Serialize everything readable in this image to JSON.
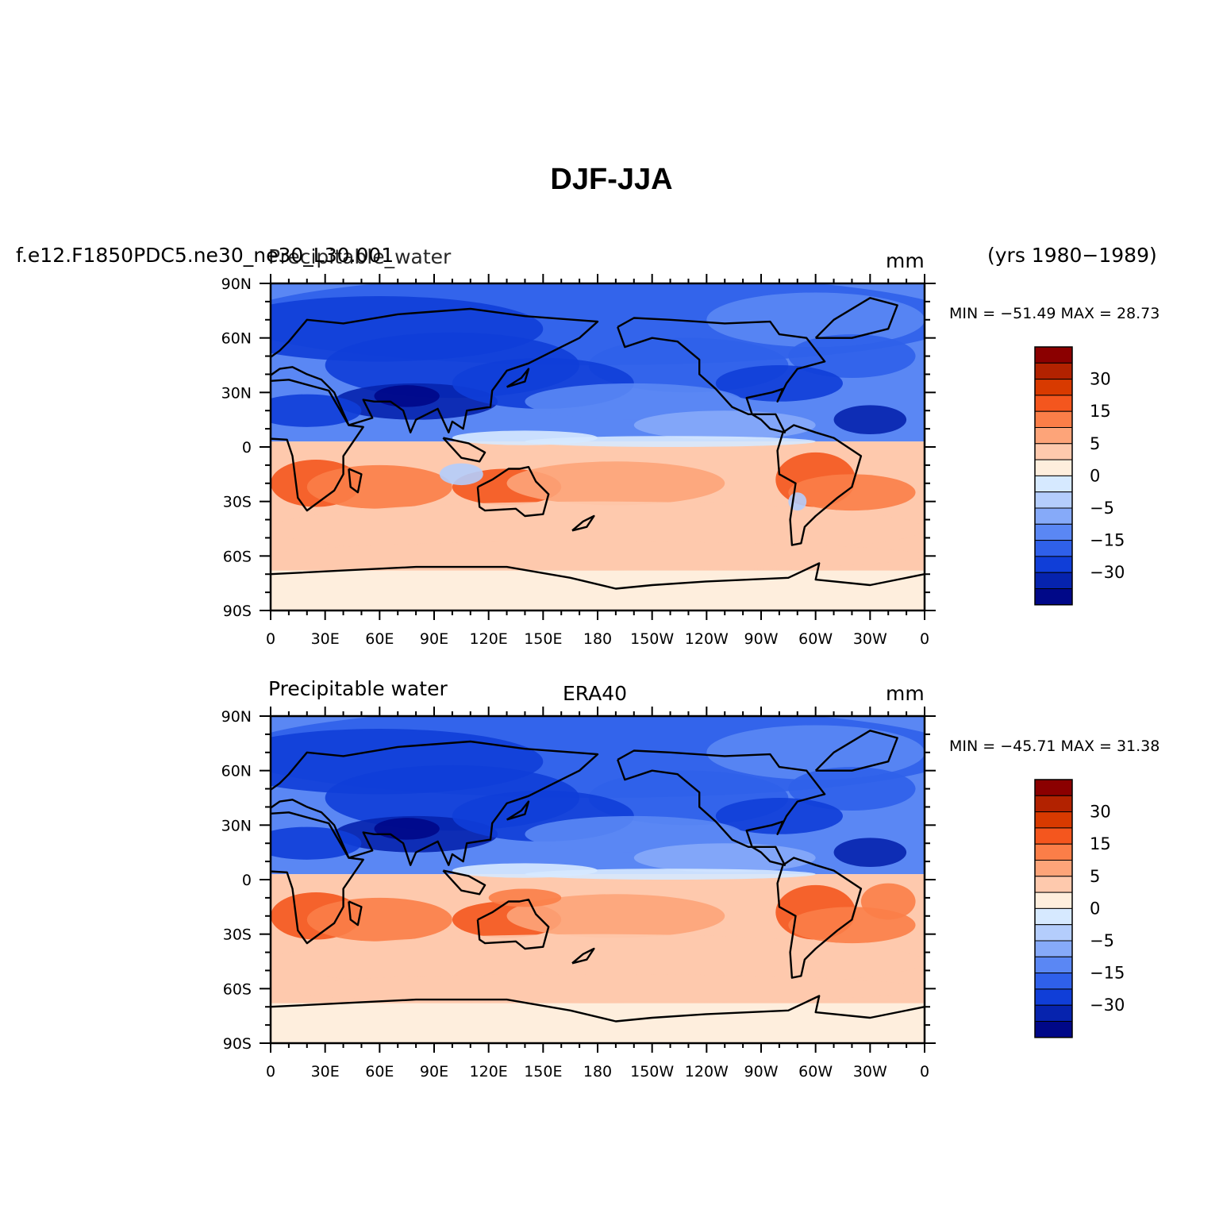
{
  "title": "DJF-JJA",
  "panels": [
    {
      "id": "model",
      "case_name": "f.e12.F1850PDC5.ne30_ne30_L30.001",
      "variable": "Precipitable_water",
      "center_label": "",
      "units": "mm",
      "years": "(yrs 1980−1989)",
      "stats": "MIN = −51.49  MAX =   28.73",
      "min": -51.49,
      "max": 28.73
    },
    {
      "id": "obs",
      "case_name": "",
      "variable": "Precipitable water",
      "center_label": "ERA40",
      "units": "mm",
      "years": "",
      "stats": "MIN = −45.71  MAX =   31.38",
      "min": -45.71,
      "max": 31.38
    }
  ],
  "axes": {
    "x_ticks": [
      "0",
      "30E",
      "60E",
      "90E",
      "120E",
      "150E",
      "180",
      "150W",
      "120W",
      "90W",
      "60W",
      "30W",
      "0"
    ],
    "y_ticks": [
      "90N",
      "60N",
      "30N",
      "0",
      "30S",
      "60S",
      "90S"
    ],
    "lon_range": [
      0,
      360
    ],
    "lat_range": [
      -90,
      90
    ]
  },
  "colorbar": {
    "labels": [
      "30",
      "15",
      "5",
      "0",
      "−5",
      "−15",
      "−30"
    ],
    "colors": [
      "#8b0000",
      "#b22200",
      "#d83a00",
      "#f4561e",
      "#fb7e48",
      "#fda479",
      "#fec9ad",
      "#feeedd",
      "#d6e9ff",
      "#b4cdfc",
      "#86aaf9",
      "#5a87f4",
      "#2f60ea",
      "#103ed8",
      "#0623ae",
      "#000888"
    ]
  },
  "chart_data": {
    "type": "heatmap",
    "description_units": "mm",
    "x_axis": "longitude",
    "y_axis": "latitude",
    "contour_levels": [
      -40,
      -30,
      -20,
      -15,
      -10,
      -5,
      -2,
      0,
      2,
      5,
      10,
      15,
      20,
      30,
      40
    ],
    "panels": [
      {
        "name": "f.e12.F1850PDC5.ne30_ne30_L30.001",
        "min": -51.49,
        "max": 28.73
      },
      {
        "name": "ERA40",
        "min": -45.71,
        "max": 31.38
      }
    ]
  }
}
